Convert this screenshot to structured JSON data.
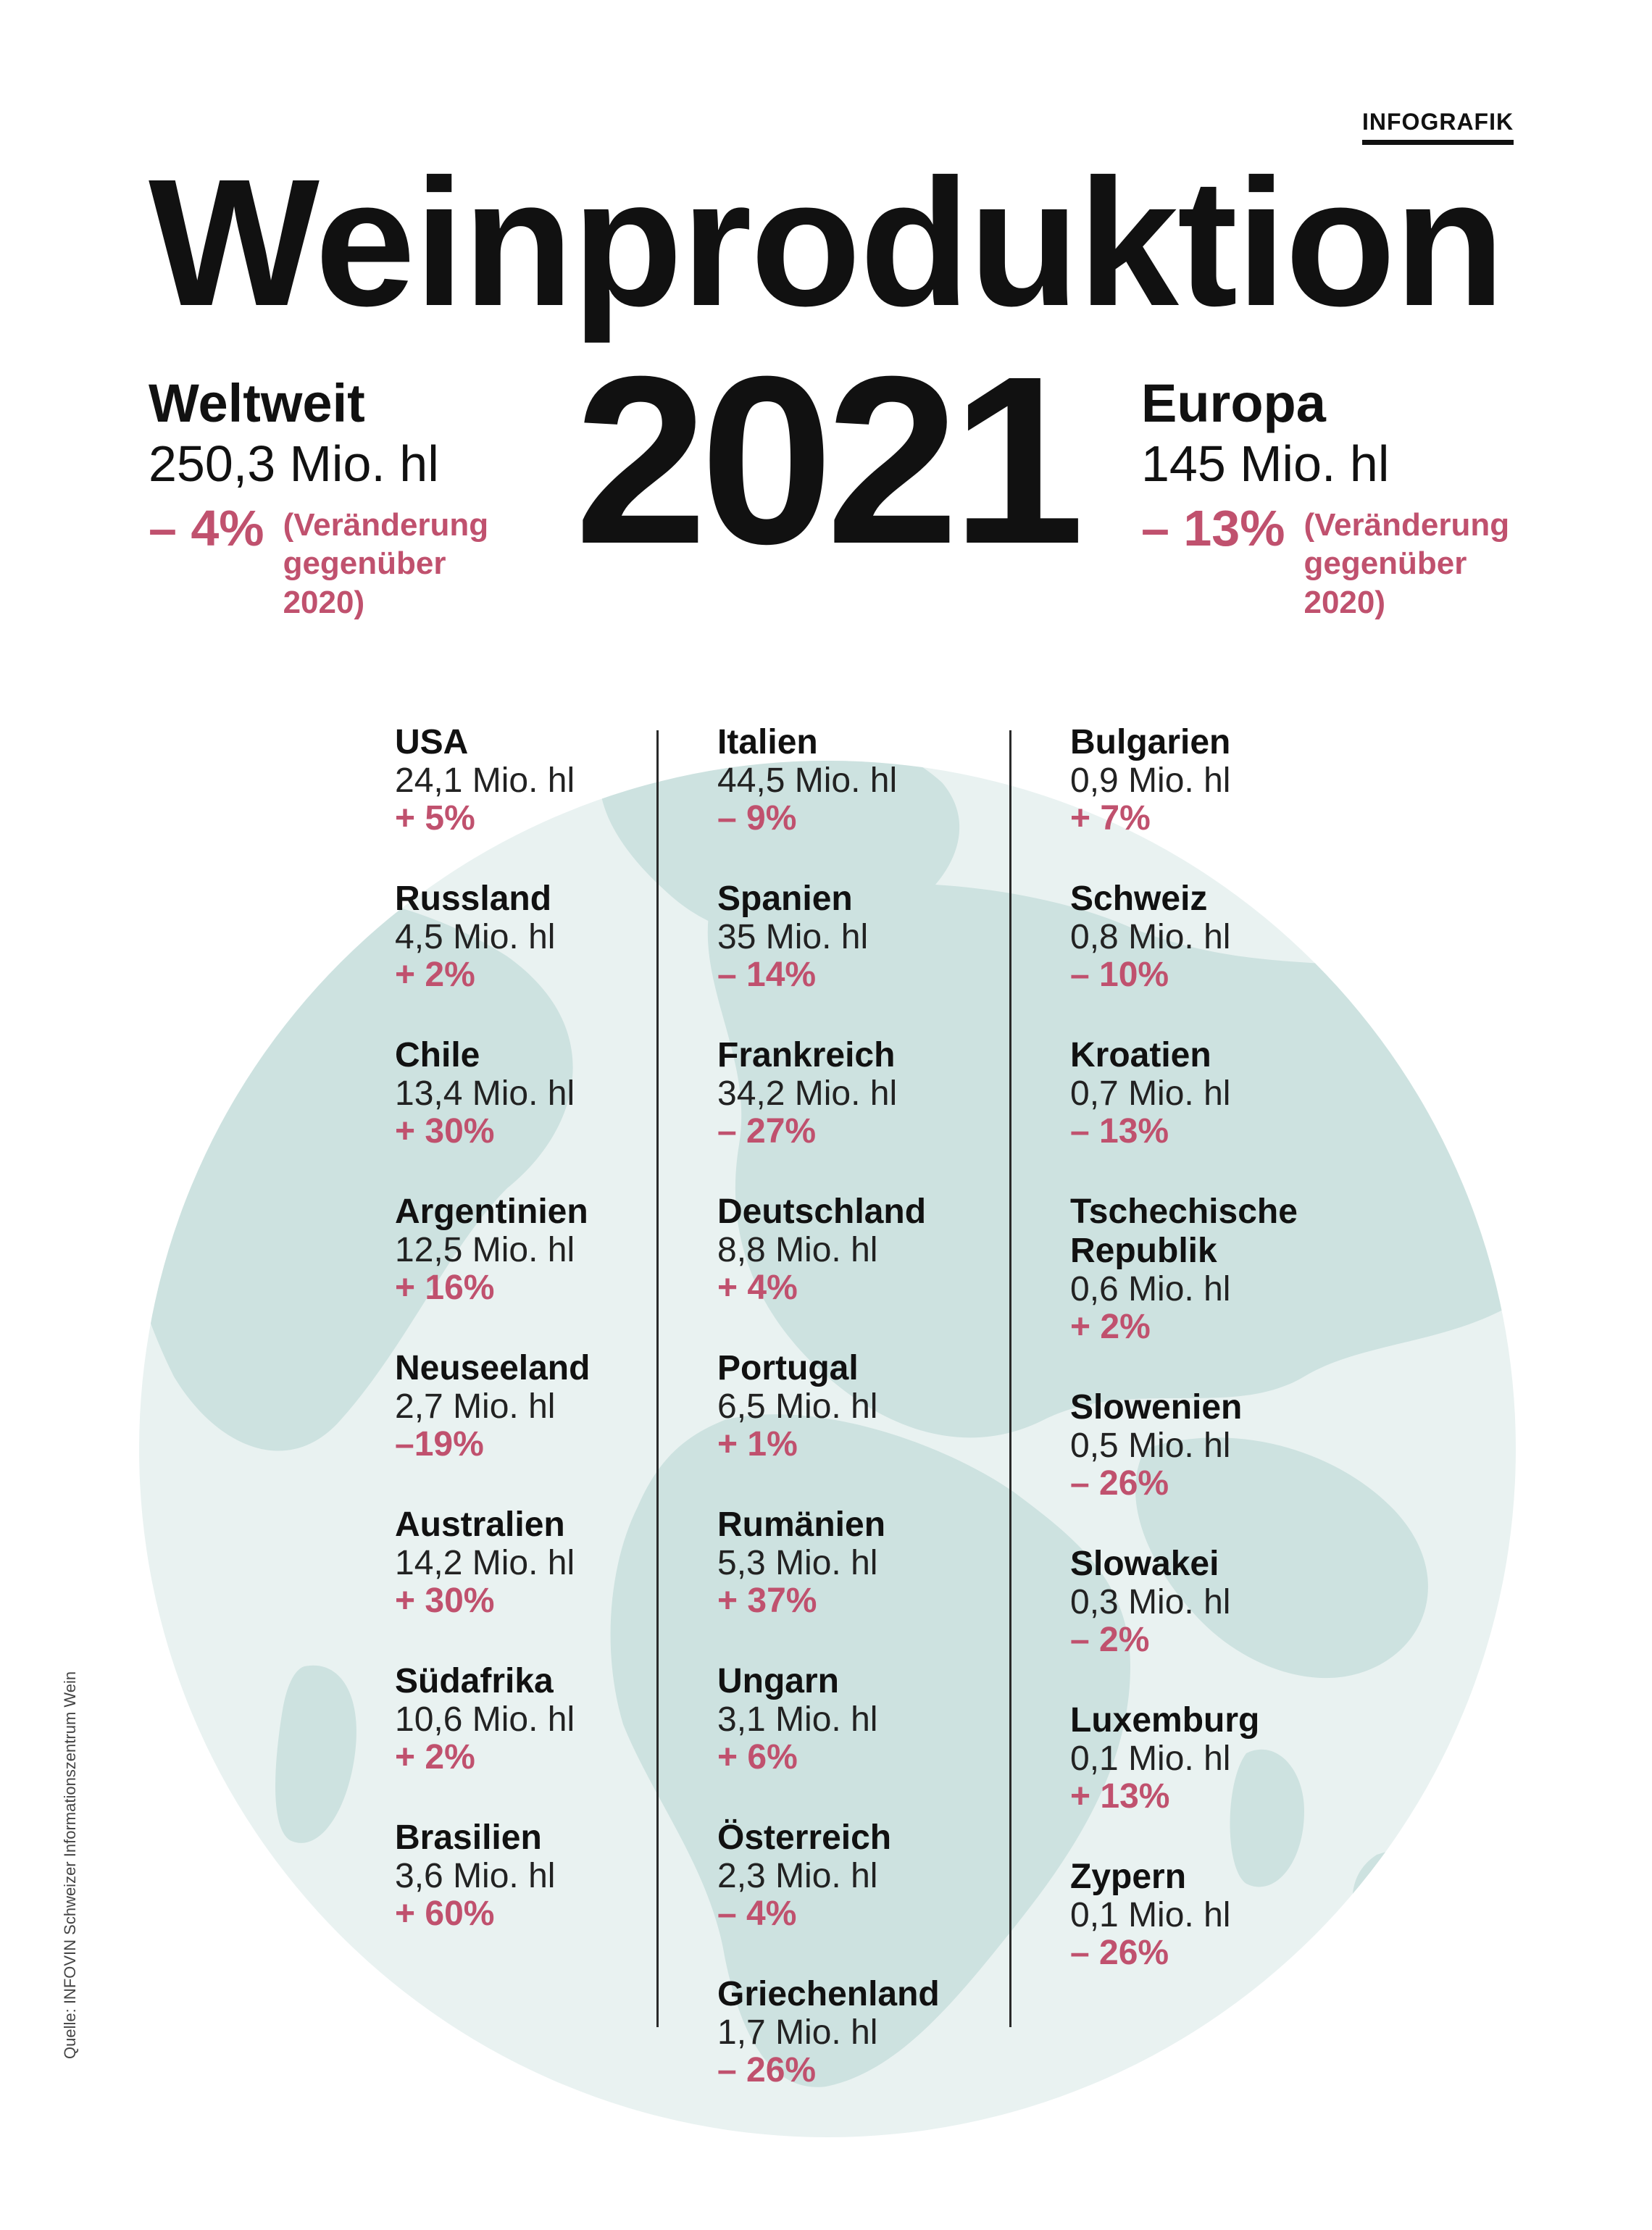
{
  "header": {
    "tag": "INFOGRAFIK",
    "title": "Weinproduktion",
    "year": "2021"
  },
  "world": {
    "label": "Weltweit",
    "volume": "250,3 Mio. hl",
    "change": "– 4%",
    "note": "(Veränderung\ngegenüber\n2020)"
  },
  "europe": {
    "label": "Europa",
    "volume": "145 Mio. hl",
    "change": "– 13%",
    "note": "(Veränderung\ngegenüber\n2020)"
  },
  "columns": [
    [
      {
        "name": "USA",
        "volume": "24,1 Mio. hl",
        "change": "+ 5%"
      },
      {
        "name": "Russland",
        "volume": "4,5 Mio. hl",
        "change": "+ 2%"
      },
      {
        "name": "Chile",
        "volume": "13,4 Mio. hl",
        "change": "+ 30%"
      },
      {
        "name": "Argentinien",
        "volume": "12,5 Mio. hl",
        "change": "+ 16%"
      },
      {
        "name": "Neuseeland",
        "volume": "2,7 Mio. hl",
        "change": "–19%"
      },
      {
        "name": "Australien",
        "volume": "14,2 Mio. hl",
        "change": "+ 30%"
      },
      {
        "name": "Südafrika",
        "volume": "10,6 Mio. hl",
        "change": "+ 2%"
      },
      {
        "name": "Brasilien",
        "volume": "3,6 Mio. hl",
        "change": "+ 60%"
      }
    ],
    [
      {
        "name": "Italien",
        "volume": "44,5 Mio. hl",
        "change": "– 9%"
      },
      {
        "name": "Spanien",
        "volume": "35 Mio. hl",
        "change": "– 14%"
      },
      {
        "name": "Frankreich",
        "volume": "34,2 Mio. hl",
        "change": "– 27%"
      },
      {
        "name": "Deutschland",
        "volume": "8,8 Mio. hl",
        "change": "+ 4%"
      },
      {
        "name": "Portugal",
        "volume": "6,5 Mio. hl",
        "change": "+ 1%"
      },
      {
        "name": "Rumänien",
        "volume": "5,3 Mio. hl",
        "change": "+ 37%"
      },
      {
        "name": "Ungarn",
        "volume": "3,1 Mio. hl",
        "change": "+ 6%"
      },
      {
        "name": "Österreich",
        "volume": "2,3 Mio. hl",
        "change": "– 4%"
      },
      {
        "name": "Griechenland",
        "volume": "1,7 Mio. hl",
        "change": "– 26%"
      }
    ],
    [
      {
        "name": "Bulgarien",
        "volume": "0,9 Mio. hl",
        "change": "+ 7%"
      },
      {
        "name": "Schweiz",
        "volume": "0,8 Mio. hl",
        "change": "– 10%"
      },
      {
        "name": "Kroatien",
        "volume": "0,7 Mio. hl",
        "change": "– 13%"
      },
      {
        "name": "Tschechische\nRepublik",
        "volume": "0,6 Mio. hl",
        "change": "+ 2%"
      },
      {
        "name": "Slowenien",
        "volume": "0,5 Mio. hl",
        "change": "– 26%"
      },
      {
        "name": "Slowakei",
        "volume": "0,3 Mio. hl",
        "change": "– 2%"
      },
      {
        "name": "Luxemburg",
        "volume": "0,1 Mio. hl",
        "change": "+ 13%"
      },
      {
        "name": "Zypern",
        "volume": "0,1 Mio. hl",
        "change": "– 26%"
      }
    ]
  ],
  "source": "Quelle: INFOVIN Schweizer Informationszentrum Wein",
  "colors": {
    "accent": "#c0516e",
    "globe_water": "#e9f2f1",
    "globe_land": "#cde2e0",
    "text": "#111111"
  }
}
